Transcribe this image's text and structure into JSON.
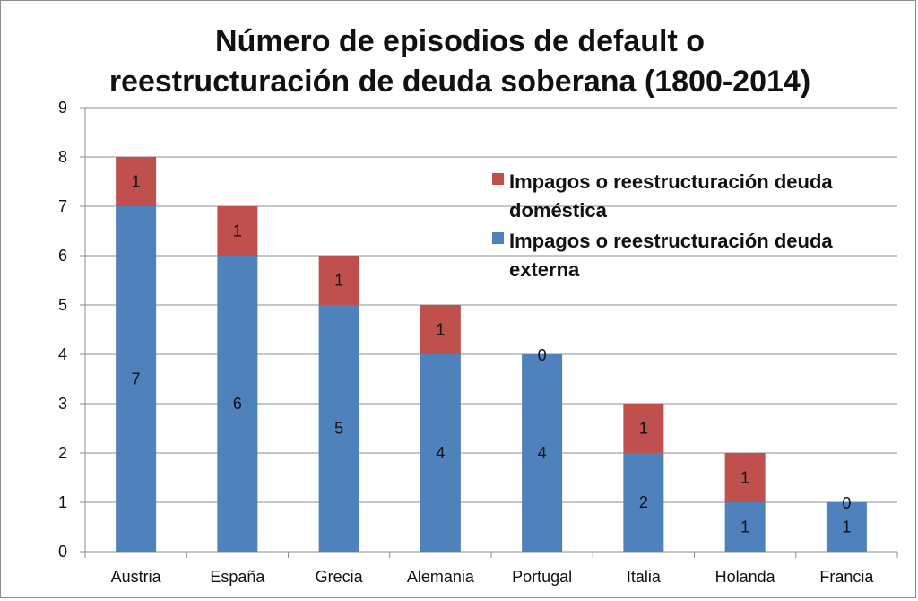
{
  "chart_data": {
    "type": "bar",
    "stacked": true,
    "title": [
      "Número de episodios de default o",
      "reestructuración de deuda soberana (1800-2014)"
    ],
    "xlabel": "",
    "ylabel": "",
    "categories": [
      "Austria",
      "España",
      "Grecia",
      "Alemania",
      "Portugal",
      "Italia",
      "Holanda",
      "Francia"
    ],
    "series": [
      {
        "name": [
          "Impagos o reestructuración deuda",
          "externa"
        ],
        "color": "#4f81bd",
        "values": [
          7,
          6,
          5,
          4,
          4,
          2,
          1,
          1
        ]
      },
      {
        "name": [
          "Impagos o reestructuración deuda",
          "doméstica"
        ],
        "color": "#c0504d",
        "values": [
          1,
          1,
          1,
          1,
          0,
          1,
          1,
          0
        ]
      }
    ],
    "ylim": [
      0,
      9
    ],
    "yticks": [
      "0",
      "1",
      "2",
      "3",
      "4",
      "5",
      "6",
      "7",
      "8",
      "9"
    ],
    "grid": true,
    "legend_position": "top-right",
    "data_labels": true
  }
}
